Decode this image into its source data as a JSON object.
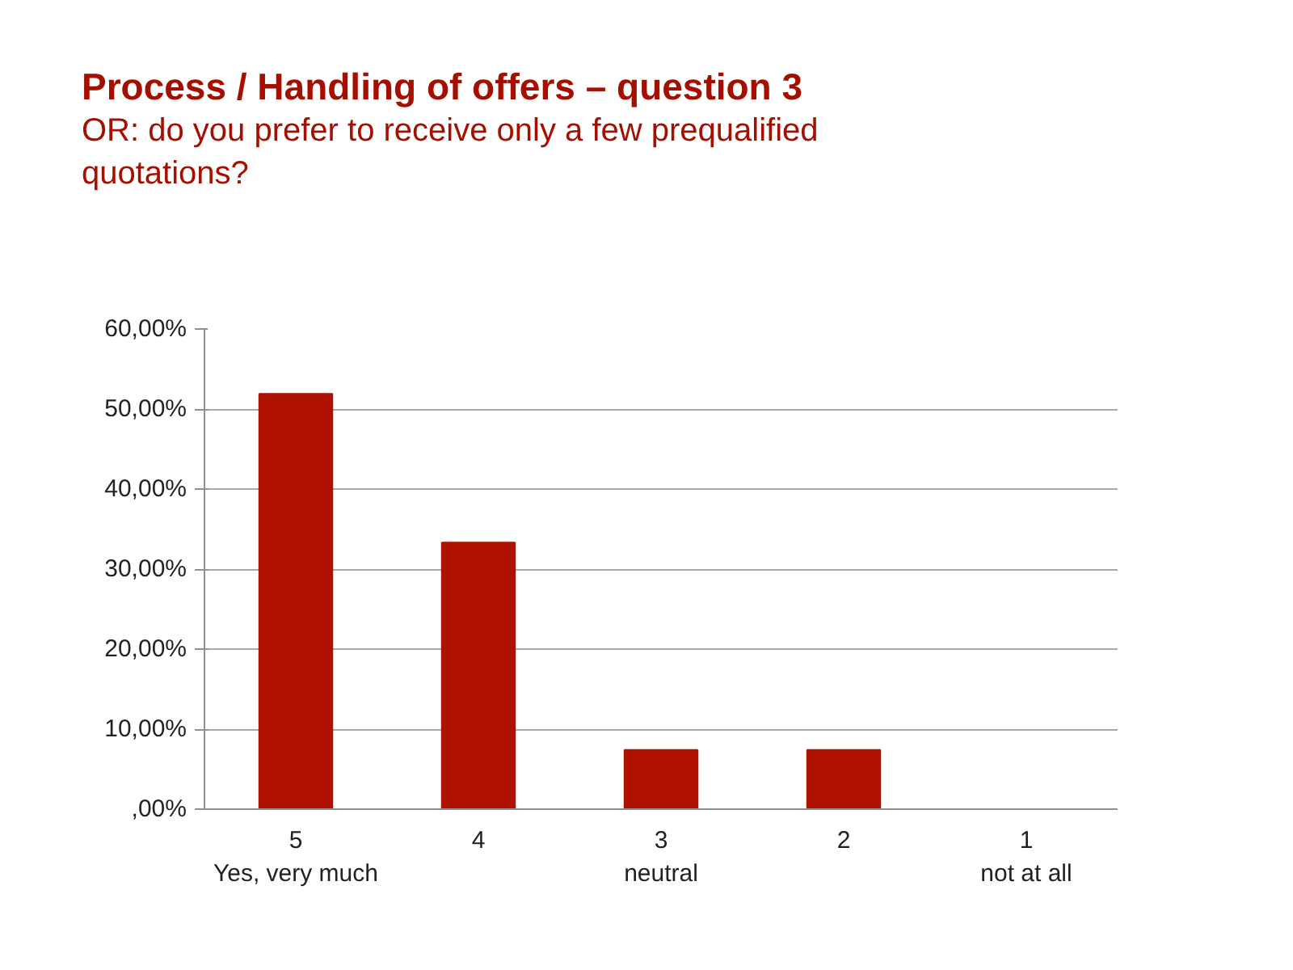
{
  "chart_data": {
    "type": "bar",
    "title": "Process / Handling of offers – question 3",
    "subtitle": "OR: do you prefer to receive only a few prequalified quotations?",
    "categories": [
      "5\nYes, very much",
      "4",
      "3\nneutral",
      "2",
      "1\nnot at all"
    ],
    "values": [
      51.9,
      33.3,
      7.4,
      7.4,
      0
    ],
    "color": "#b01200",
    "ylim": [
      0,
      60
    ],
    "yticks": [
      {
        "value": 0,
        "label": ",00%"
      },
      {
        "value": 10,
        "label": "10,00%"
      },
      {
        "value": 20,
        "label": "20,00%"
      },
      {
        "value": 30,
        "label": "30,00%"
      },
      {
        "value": 40,
        "label": "40,00%"
      },
      {
        "value": 50,
        "label": "50,00%"
      },
      {
        "value": 60,
        "label": "60,00%"
      }
    ],
    "grid": "y",
    "legend": false
  }
}
